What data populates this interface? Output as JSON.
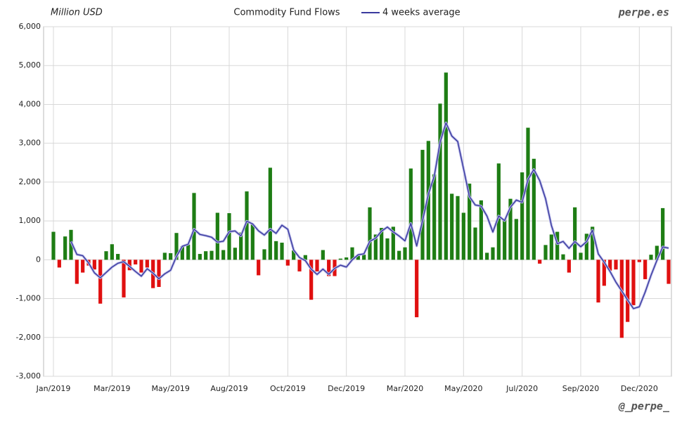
{
  "chart_data": {
    "type": "bar",
    "title": "Commodity Fund Flows",
    "y_label": "Million USD",
    "source": "perpe.es",
    "credit": "@_perpe_",
    "categories": [
      "Jan/2019",
      null,
      null,
      null,
      null,
      null,
      null,
      null,
      null,
      null,
      "Mar/2019",
      null,
      null,
      null,
      null,
      null,
      null,
      null,
      null,
      null,
      "May/2019",
      null,
      null,
      null,
      null,
      null,
      null,
      null,
      null,
      null,
      "Aug/2019",
      null,
      null,
      null,
      null,
      null,
      null,
      null,
      null,
      null,
      "Oct/2019",
      null,
      null,
      null,
      null,
      null,
      null,
      null,
      null,
      null,
      "Dec/2019",
      null,
      null,
      null,
      null,
      null,
      null,
      null,
      null,
      null,
      "Mar/2020",
      null,
      null,
      null,
      null,
      null,
      null,
      null,
      null,
      null,
      "May/2020",
      null,
      null,
      null,
      null,
      null,
      null,
      null,
      null,
      null,
      "Jul/2020",
      null,
      null,
      null,
      null,
      null,
      null,
      null,
      null,
      null,
      "Sep/2020",
      null,
      null,
      null,
      null,
      null,
      null,
      null,
      null,
      null,
      "Dec/2020",
      null,
      null,
      null,
      null,
      null
    ],
    "series": [
      {
        "type": "bar",
        "color_positive": "#1e7d14",
        "color_negative": "#e01010",
        "values": [
          720,
          -200,
          600,
          770,
          -620,
          -330,
          -150,
          -250,
          -1130,
          220,
          400,
          150,
          -970,
          -270,
          -120,
          -330,
          -200,
          -730,
          -700,
          180,
          170,
          690,
          350,
          390,
          1720,
          150,
          220,
          230,
          1210,
          250,
          1200,
          310,
          700,
          1760,
          920,
          -400,
          270,
          2370,
          480,
          440,
          -150,
          240,
          -300,
          120,
          -1030,
          -300,
          250,
          -420,
          -420,
          30,
          60,
          320,
          100,
          130,
          1350,
          650,
          820,
          550,
          850,
          230,
          320,
          2350,
          -1480,
          2830,
          3060,
          2200,
          4020,
          4820,
          1700,
          1640,
          1210,
          1960,
          830,
          1530,
          180,
          320,
          2480,
          1050,
          1570,
          1050,
          2250,
          3400,
          2600,
          -100,
          380,
          650,
          720,
          140,
          -330,
          1350,
          180,
          670,
          850,
          -1100,
          -670,
          -280,
          -250,
          -2010,
          -1600,
          -1170,
          -60,
          -500,
          130,
          360,
          1330,
          -620
        ]
      },
      {
        "type": "line",
        "name": "4 weeks average",
        "color": "#3a3a9e",
        "values": [
          null,
          null,
          null,
          472,
          137,
          105,
          -82,
          -337,
          -465,
          -327,
          -190,
          -90,
          -50,
          -172,
          -302,
          -422,
          -230,
          -345,
          -490,
          -362,
          -270,
          85,
          347,
          400,
          787,
          652,
          620,
          580,
          452,
          477,
          722,
          742,
          615,
          992,
          922,
          745,
          637,
          790,
          680,
          890,
          785,
          252,
          57,
          -22,
          -242,
          -377,
          -240,
          -375,
          -222,
          -140,
          -187,
          -2,
          127,
          152,
          475,
          557,
          737,
          842,
          717,
          612,
          487,
          937,
          355,
          1005,
          1690,
          2152,
          3027,
          3525,
          3185,
          3045,
          2342,
          1627,
          1410,
          1382,
          1125,
          715,
          1127,
          1007,
          1355,
          1537,
          1480,
          2067,
          2325,
          2037,
          1570,
          882,
          412,
          472,
          295,
          470,
          335,
          467,
          762,
          150,
          -62,
          -300,
          -575,
          -802,
          -1035,
          -1257,
          -1210,
          -832,
          -400,
          -17,
          330,
          300
        ]
      }
    ],
    "ylim": [
      -3000,
      6000
    ],
    "yticks": [
      {
        "value": -3000,
        "label": "-3,000"
      },
      {
        "value": -2000,
        "label": "-2,000"
      },
      {
        "value": -1000,
        "label": "-1,000"
      },
      0,
      {
        "value": 1000,
        "label": "1,000"
      },
      {
        "value": 2000,
        "label": "2,000"
      },
      {
        "value": 3000,
        "label": "3,000"
      },
      {
        "value": 4000,
        "label": "4,000"
      },
      {
        "value": 5000,
        "label": "5,000"
      },
      {
        "value": 6000,
        "label": "6,000"
      }
    ],
    "grid": true
  }
}
